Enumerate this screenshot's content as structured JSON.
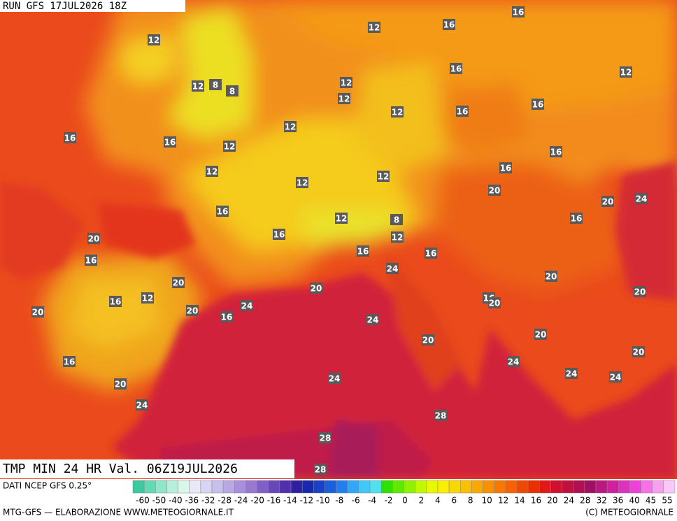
{
  "header": {
    "run": "RUN GFS 17JUL2026 18Z",
    "title": "TMP MIN 24 HR Val. 06Z19JUL2026"
  },
  "map_labels": [
    12,
    12,
    16,
    16,
    16,
    12,
    12,
    8,
    8,
    12,
    12,
    12,
    16,
    16,
    12,
    16,
    16,
    12,
    16,
    12,
    16,
    12,
    12,
    20,
    20,
    24,
    16,
    12,
    8,
    16,
    20,
    16,
    12,
    16,
    16,
    16,
    24,
    20,
    20,
    20,
    20,
    16,
    12,
    16,
    20,
    24,
    20,
    20,
    16,
    24,
    20,
    20,
    20,
    16,
    24,
    24,
    24,
    24,
    20,
    24,
    28,
    28,
    28
  ],
  "legend": {
    "source": "DATI NCEP GFS 0.25°",
    "ticks": [
      -60,
      -50,
      -40,
      -36,
      -32,
      -28,
      -24,
      -20,
      -16,
      -14,
      -12,
      -10,
      -8,
      -6,
      -4,
      -2,
      0,
      2,
      4,
      6,
      8,
      10,
      12,
      14,
      16,
      20,
      24,
      28,
      32,
      36,
      40,
      45,
      55
    ]
  },
  "footer": {
    "credit": "MTG-GFS — ELABORAZIONE WWW.METEOGIORNALE.IT",
    "copyright": "(C) METEOGIORNALE"
  }
}
